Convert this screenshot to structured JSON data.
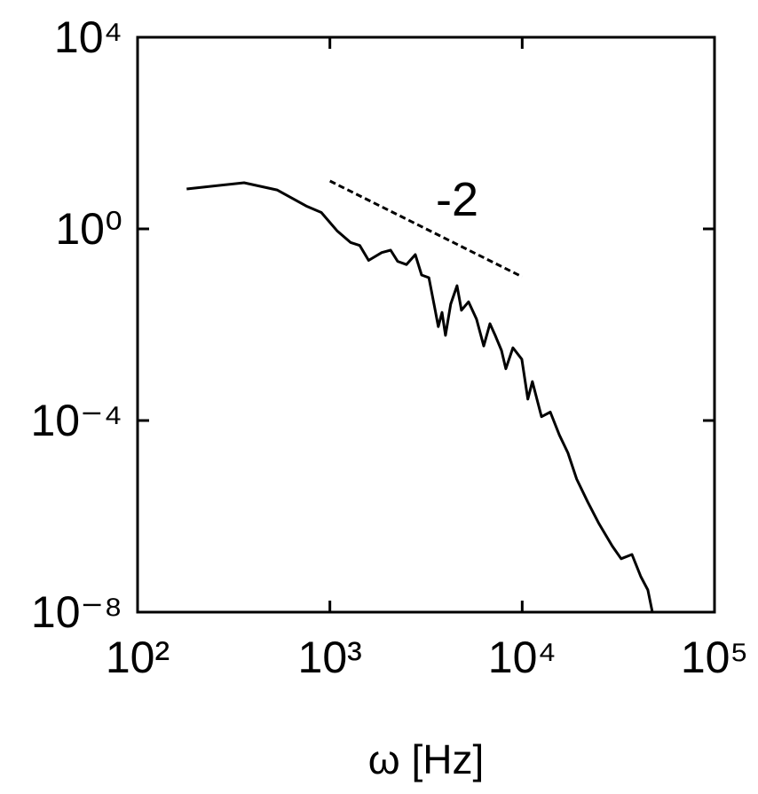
{
  "chart_data": {
    "type": "line",
    "xlabel": "ω [Hz]",
    "xscale": "log",
    "yscale": "log",
    "xlim": [
      100,
      100000
    ],
    "ylim": [
      1e-08,
      10000
    ],
    "xticks": [
      {
        "value": 100,
        "label": "10²"
      },
      {
        "value": 1000,
        "label": "10³"
      },
      {
        "value": 10000,
        "label": "10⁴"
      },
      {
        "value": 100000,
        "label": "10⁵"
      }
    ],
    "yticks": [
      {
        "value": 1e-08,
        "label": "10⁻⁸"
      },
      {
        "value": 0.0001,
        "label": "10⁻⁴"
      },
      {
        "value": 1,
        "label": "10⁰"
      },
      {
        "value": 10000,
        "label": "10⁴"
      }
    ],
    "series": [
      {
        "color": "#000000",
        "x": [
          180,
          358,
          531,
          753,
          902,
          1090,
          1280,
          1430,
          1590,
          1860,
          2070,
          2250,
          2500,
          2780,
          3000,
          3270,
          3520,
          3660,
          3830,
          3990,
          4250,
          4580,
          4830,
          5260,
          5790,
          6310,
          6800,
          7240,
          7800,
          8220,
          8950,
          9950,
          10700,
          11300,
          12600,
          14000,
          15600,
          17300,
          19200,
          21900,
          25100,
          29400,
          32700,
          37200,
          41400,
          45000,
          47500
        ],
        "values": [
          6.8,
          9.2,
          6.5,
          3.0,
          2.2,
          0.91,
          0.52,
          0.45,
          0.22,
          0.32,
          0.36,
          0.21,
          0.18,
          0.29,
          0.109,
          0.096,
          0.021,
          0.0091,
          0.018,
          0.006,
          0.027,
          0.065,
          0.02,
          0.03,
          0.013,
          0.0036,
          0.0105,
          0.006,
          0.0029,
          0.0012,
          0.0033,
          0.0019,
          0.00028,
          0.00065,
          0.00012,
          0.00015,
          5e-05,
          2.1e-05,
          6e-06,
          2e-06,
          7e-07,
          2.4e-07,
          1.3e-07,
          1.6e-07,
          5.5e-08,
          2.9e-08,
          1e-08
        ]
      }
    ],
    "reference_line": {
      "label": "-2",
      "x": [
        1000,
        10000
      ],
      "values": [
        10,
        0.1
      ],
      "color": "#000000"
    }
  }
}
